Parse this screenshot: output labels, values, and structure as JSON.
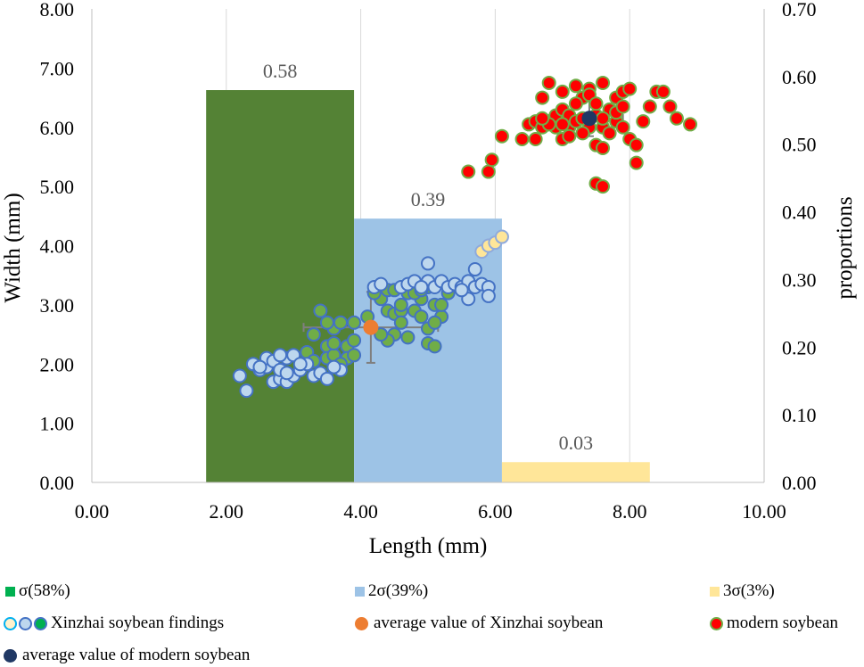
{
  "chart_data": {
    "type": "combo-bar-scatter",
    "xlabel": "Length (mm)",
    "ylabel": "Width (mm)",
    "y2label": "proportions",
    "xlim": [
      0,
      10
    ],
    "ylim": [
      0,
      8
    ],
    "y2lim": [
      0,
      0.7
    ],
    "x_ticks": [
      "0.00",
      "2.00",
      "4.00",
      "6.00",
      "8.00",
      "10.00"
    ],
    "y_ticks": [
      "0.00",
      "1.00",
      "2.00",
      "3.00",
      "4.00",
      "5.00",
      "6.00",
      "7.00",
      "8.00"
    ],
    "y2_ticks": [
      "0.00",
      "0.10",
      "0.20",
      "0.30",
      "0.40",
      "0.50",
      "0.60",
      "0.70"
    ],
    "grid": "vertical",
    "bars": [
      {
        "name": "σ(58%)",
        "x_start": 1.7,
        "x_end": 3.9,
        "value": 0.58,
        "label": "0.58",
        "color": "#548235"
      },
      {
        "name": "2σ(39%)",
        "x_start": 3.9,
        "x_end": 6.1,
        "value": 0.39,
        "label": "0.39",
        "color": "#9DC3E6"
      },
      {
        "name": "3σ(3%)",
        "x_start": 6.1,
        "x_end": 8.3,
        "value": 0.03,
        "label": "0.03",
        "color": "#FFE699"
      }
    ],
    "series": [
      {
        "name": "Xinzhai soybean findings (σ)",
        "fill": "#70AD47",
        "stroke": "#4472C4",
        "points": [
          [
            3.4,
            2.9
          ],
          [
            3.3,
            2.5
          ],
          [
            3.5,
            2.3
          ],
          [
            3.2,
            2.2
          ],
          [
            3.6,
            2.6
          ],
          [
            3.7,
            2.7
          ],
          [
            3.8,
            2.3
          ],
          [
            3.9,
            2.4
          ],
          [
            3.5,
            2.1
          ],
          [
            3.3,
            2.05
          ],
          [
            3.6,
            2.15
          ],
          [
            3.8,
            2.1
          ],
          [
            3.9,
            2.15
          ],
          [
            3.6,
            2.35
          ],
          [
            3.5,
            2.7
          ],
          [
            3.7,
            2.0
          ],
          [
            3.9,
            2.7
          ],
          [
            4.1,
            2.8
          ],
          [
            4.3,
            3.1
          ],
          [
            4.4,
            3.25
          ],
          [
            4.2,
            3.2
          ],
          [
            4.4,
            2.9
          ],
          [
            4.5,
            2.85
          ],
          [
            4.6,
            2.9
          ],
          [
            4.7,
            3.2
          ],
          [
            4.8,
            2.9
          ],
          [
            4.9,
            3.1
          ],
          [
            5.0,
            3.3
          ],
          [
            5.1,
            3.0
          ],
          [
            5.2,
            2.8
          ],
          [
            4.9,
            2.8
          ],
          [
            5.0,
            2.6
          ],
          [
            4.6,
            2.7
          ],
          [
            4.5,
            2.5
          ],
          [
            4.4,
            2.4
          ],
          [
            4.7,
            2.45
          ],
          [
            4.8,
            3.2
          ],
          [
            5.1,
            2.7
          ],
          [
            5.0,
            2.35
          ],
          [
            5.1,
            2.3
          ],
          [
            4.5,
            3.25
          ],
          [
            4.6,
            3.0
          ],
          [
            4.9,
            3.25
          ],
          [
            5.2,
            3.0
          ],
          [
            5.3,
            3.2
          ],
          [
            4.3,
            2.5
          ]
        ]
      },
      {
        "name": "Xinzhai soybean findings (2σ)",
        "fill": "#BDD7EE",
        "stroke": "#4472C4",
        "points": [
          [
            2.2,
            1.8
          ],
          [
            2.3,
            1.55
          ],
          [
            2.4,
            2.0
          ],
          [
            2.5,
            1.9
          ],
          [
            2.6,
            1.95
          ],
          [
            2.7,
            1.7
          ],
          [
            2.8,
            1.75
          ],
          [
            2.9,
            1.7
          ],
          [
            3.0,
            1.8
          ],
          [
            2.6,
            2.1
          ],
          [
            2.7,
            2.05
          ],
          [
            2.8,
            1.9
          ],
          [
            2.9,
            2.1
          ],
          [
            3.0,
            2.15
          ],
          [
            3.1,
            1.9
          ],
          [
            3.2,
            2.0
          ],
          [
            3.3,
            1.8
          ],
          [
            3.4,
            1.85
          ],
          [
            3.5,
            1.75
          ],
          [
            3.7,
            1.9
          ],
          [
            2.5,
            1.95
          ],
          [
            2.8,
            2.15
          ],
          [
            3.1,
            2.0
          ],
          [
            2.9,
            1.85
          ],
          [
            3.6,
            1.95
          ],
          [
            4.2,
            3.3
          ],
          [
            4.3,
            3.35
          ],
          [
            4.6,
            3.3
          ],
          [
            4.7,
            3.35
          ],
          [
            4.8,
            3.4
          ],
          [
            5.0,
            3.4
          ],
          [
            5.1,
            3.3
          ],
          [
            5.2,
            3.4
          ],
          [
            5.3,
            3.3
          ],
          [
            5.4,
            3.35
          ],
          [
            5.5,
            3.3
          ],
          [
            5.6,
            3.4
          ],
          [
            5.7,
            3.3
          ],
          [
            5.8,
            3.35
          ],
          [
            5.9,
            3.3
          ],
          [
            5.7,
            3.6
          ],
          [
            5.0,
            3.7
          ],
          [
            5.6,
            3.1
          ],
          [
            5.9,
            3.15
          ],
          [
            5.5,
            3.25
          ],
          [
            4.9,
            3.3
          ]
        ]
      },
      {
        "name": "Xinzhai soybean findings (3σ)",
        "fill": "#FFE699",
        "stroke": "#8FAADC",
        "points": [
          [
            5.8,
            3.9
          ],
          [
            5.9,
            4.0
          ],
          [
            6.0,
            4.05
          ],
          [
            6.1,
            4.15
          ]
        ]
      },
      {
        "name": "modern soybean",
        "fill": "#FF0000",
        "stroke": "#70AD47",
        "points": [
          [
            5.6,
            5.25
          ],
          [
            5.9,
            5.25
          ],
          [
            5.95,
            5.45
          ],
          [
            6.1,
            5.85
          ],
          [
            6.4,
            5.8
          ],
          [
            6.5,
            6.05
          ],
          [
            6.6,
            6.1
          ],
          [
            6.7,
            6.0
          ],
          [
            6.8,
            6.1
          ],
          [
            6.9,
            6.0
          ],
          [
            7.0,
            5.8
          ],
          [
            7.1,
            6.0
          ],
          [
            6.9,
            6.2
          ],
          [
            7.0,
            6.3
          ],
          [
            7.1,
            6.2
          ],
          [
            7.2,
            6.1
          ],
          [
            7.3,
            6.15
          ],
          [
            7.4,
            6.0
          ],
          [
            7.5,
            6.2
          ],
          [
            7.6,
            6.0
          ],
          [
            7.7,
            5.9
          ],
          [
            7.8,
            6.1
          ],
          [
            7.9,
            6.0
          ],
          [
            8.0,
            5.8
          ],
          [
            8.1,
            5.7
          ],
          [
            8.2,
            6.1
          ],
          [
            8.3,
            6.35
          ],
          [
            8.4,
            6.6
          ],
          [
            8.5,
            6.6
          ],
          [
            8.6,
            6.35
          ],
          [
            8.7,
            6.15
          ],
          [
            8.9,
            6.05
          ],
          [
            7.0,
            6.6
          ],
          [
            7.2,
            6.7
          ],
          [
            7.4,
            6.65
          ],
          [
            7.6,
            6.75
          ],
          [
            7.8,
            6.5
          ],
          [
            7.9,
            6.6
          ],
          [
            8.0,
            6.65
          ],
          [
            6.8,
            6.75
          ],
          [
            6.7,
            6.5
          ],
          [
            6.6,
            5.8
          ],
          [
            7.3,
            5.9
          ],
          [
            7.5,
            5.7
          ],
          [
            7.6,
            5.65
          ],
          [
            7.5,
            5.05
          ],
          [
            7.6,
            5.0
          ],
          [
            8.1,
            5.4
          ],
          [
            7.1,
            5.85
          ],
          [
            7.3,
            6.5
          ],
          [
            7.7,
            6.3
          ],
          [
            7.8,
            6.25
          ],
          [
            7.9,
            6.35
          ],
          [
            6.8,
            6.05
          ],
          [
            6.7,
            6.15
          ],
          [
            7.0,
            6.05
          ],
          [
            7.2,
            6.4
          ],
          [
            7.4,
            6.55
          ],
          [
            7.5,
            6.4
          ],
          [
            7.6,
            6.15
          ]
        ]
      },
      {
        "name": "average value of Xinzhai soybean",
        "fill": "#ED7D31",
        "stroke": "#ED7D31",
        "points": [
          [
            4.15,
            2.62
          ]
        ],
        "error_x": [
          1.0,
          1.0
        ],
        "error_y": [
          0.6,
          0.6
        ]
      },
      {
        "name": "average value of modern soybean",
        "fill": "#203864",
        "stroke": "#203864",
        "points": [
          [
            7.4,
            6.15
          ]
        ],
        "error_x": [
          0.5,
          0.5
        ],
        "error_y": [
          0.3,
          0.3
        ]
      }
    ]
  },
  "legend": {
    "row1": [
      "σ(58%)",
      "2σ(39%)",
      "3σ(3%)"
    ],
    "row2": [
      "Xinzhai soybean findings",
      "average value of Xinzhai soybean",
      "modern soybean"
    ],
    "row3": [
      "average value of modern soybean"
    ]
  }
}
